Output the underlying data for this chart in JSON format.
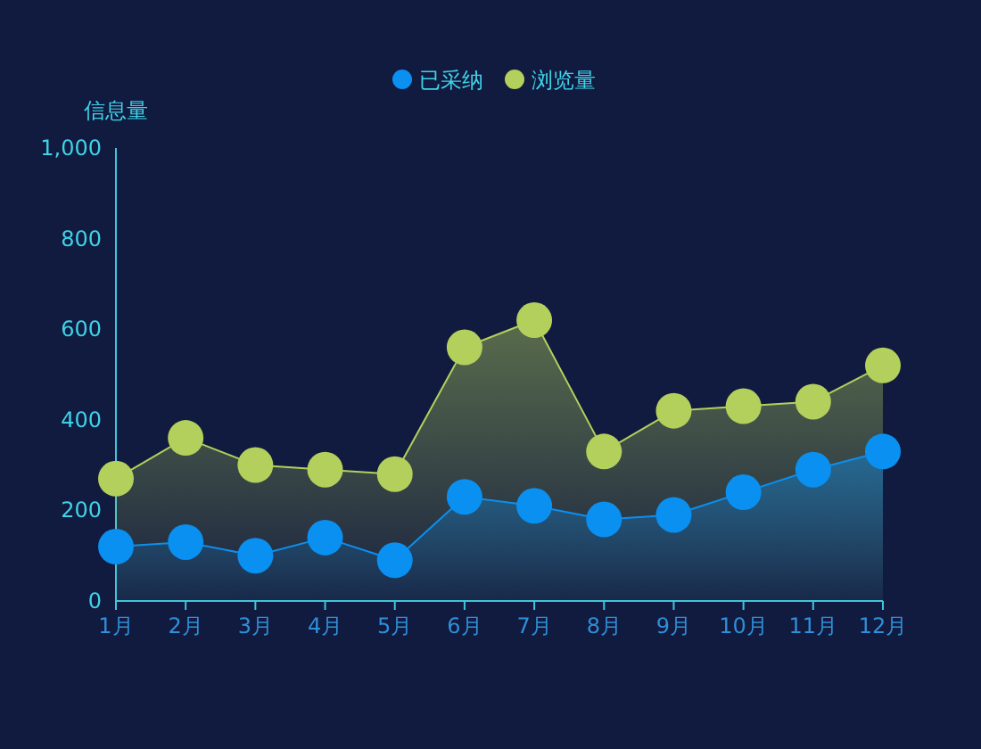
{
  "chart_data": {
    "type": "area",
    "ylabel": "信息量",
    "categories": [
      "1月",
      "2月",
      "3月",
      "4月",
      "5月",
      "6月",
      "7月",
      "8月",
      "9月",
      "10月",
      "11月",
      "12月"
    ],
    "series": [
      {
        "name": "已采纳",
        "color": "#0a90f0",
        "values": [
          120,
          130,
          100,
          140,
          90,
          230,
          210,
          180,
          190,
          240,
          290,
          330
        ]
      },
      {
        "name": "浏览量",
        "color": "#b3d05c",
        "values": [
          270,
          360,
          300,
          290,
          280,
          560,
          620,
          330,
          420,
          430,
          440,
          520
        ]
      }
    ],
    "ylim": [
      0,
      1000
    ],
    "yticks": [
      0,
      200,
      400,
      600,
      800,
      {
        "value": 1000,
        "label": "1,000"
      }
    ],
    "grid": false,
    "legend": "top",
    "marker": "circle",
    "line_style": "solid"
  }
}
